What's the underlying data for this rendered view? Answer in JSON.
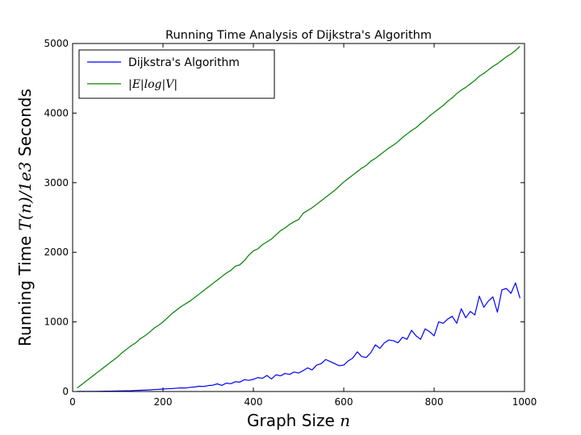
{
  "chart_data": {
    "type": "line",
    "title": "Running Time Analysis of Dijkstra's Algorithm",
    "xlabel_text": "Graph Size ",
    "xlabel_var": "n",
    "ylabel_text": "Running Time ",
    "ylabel_var": "T(n)/1e3",
    "ylabel_suffix": " Seconds",
    "xlim": [
      0,
      1000
    ],
    "ylim": [
      0,
      5000
    ],
    "xticks": [
      0,
      200,
      400,
      600,
      800,
      1000
    ],
    "yticks": [
      0,
      1000,
      2000,
      3000,
      4000,
      5000
    ],
    "grid": false,
    "legend_position": "top-left",
    "x": [
      10,
      20,
      30,
      40,
      50,
      60,
      70,
      80,
      90,
      100,
      110,
      120,
      130,
      140,
      150,
      160,
      170,
      180,
      190,
      200,
      210,
      220,
      230,
      240,
      250,
      260,
      270,
      280,
      290,
      300,
      310,
      320,
      330,
      340,
      350,
      360,
      370,
      380,
      390,
      400,
      410,
      420,
      430,
      440,
      450,
      460,
      470,
      480,
      490,
      500,
      510,
      520,
      530,
      540,
      550,
      560,
      570,
      580,
      590,
      600,
      610,
      620,
      630,
      640,
      650,
      660,
      670,
      680,
      690,
      700,
      710,
      720,
      730,
      740,
      750,
      760,
      770,
      780,
      790,
      800,
      810,
      820,
      830,
      840,
      850,
      860,
      870,
      880,
      890,
      900,
      910,
      920,
      930,
      940,
      950,
      960,
      970,
      980,
      990
    ],
    "series": [
      {
        "name": "Dijkstra's Algorithm",
        "color": "#0000ff",
        "values": [
          0,
          1,
          1,
          2,
          2,
          3,
          4,
          5,
          6,
          7,
          9,
          11,
          12,
          15,
          17,
          20,
          23,
          28,
          30,
          35,
          40,
          42,
          47,
          52,
          50,
          60,
          65,
          75,
          72,
          85,
          90,
          110,
          88,
          120,
          112,
          140,
          135,
          170,
          160,
          175,
          200,
          190,
          230,
          180,
          240,
          225,
          260,
          245,
          280,
          265,
          300,
          340,
          310,
          380,
          400,
          460,
          430,
          400,
          370,
          380,
          440,
          480,
          570,
          500,
          490,
          560,
          670,
          620,
          700,
          740,
          730,
          700,
          780,
          750,
          880,
          800,
          750,
          900,
          860,
          800,
          1000,
          980,
          1040,
          1080,
          980,
          1190,
          1060,
          1150,
          1100,
          1370,
          1210,
          1300,
          1360,
          1140,
          1460,
          1480,
          1410,
          1560,
          1340
        ]
      },
      {
        "name": "|E|log|V|",
        "color": "#008000",
        "values": [
          50,
          100,
          150,
          200,
          250,
          300,
          350,
          400,
          450,
          500,
          560,
          610,
          660,
          700,
          760,
          800,
          850,
          910,
          950,
          1000,
          1060,
          1120,
          1170,
          1220,
          1260,
          1300,
          1350,
          1400,
          1450,
          1500,
          1550,
          1600,
          1650,
          1700,
          1740,
          1800,
          1820,
          1880,
          1960,
          2020,
          2050,
          2110,
          2150,
          2190,
          2250,
          2310,
          2350,
          2400,
          2440,
          2470,
          2560,
          2600,
          2640,
          2690,
          2740,
          2790,
          2840,
          2890,
          2950,
          3010,
          3060,
          3110,
          3160,
          3210,
          3250,
          3310,
          3350,
          3400,
          3450,
          3500,
          3540,
          3590,
          3650,
          3700,
          3750,
          3790,
          3850,
          3900,
          3960,
          4010,
          4060,
          4110,
          4170,
          4220,
          4280,
          4330,
          4370,
          4420,
          4470,
          4530,
          4570,
          4620,
          4670,
          4710,
          4760,
          4810,
          4850,
          4900,
          4960
        ]
      }
    ]
  }
}
